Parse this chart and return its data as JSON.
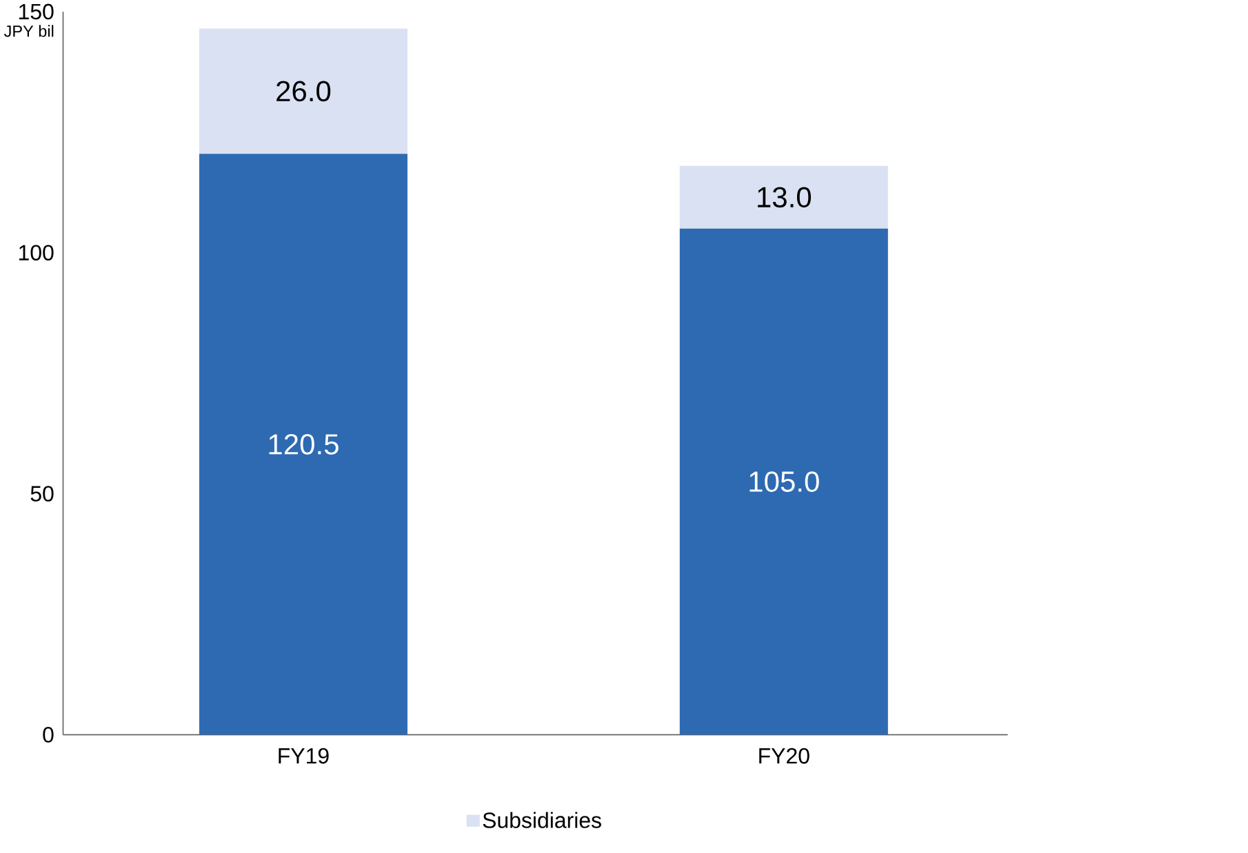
{
  "chart_data": {
    "type": "bar",
    "stacked": true,
    "ylabel": "JPY bil",
    "categories": [
      "FY19",
      "FY20"
    ],
    "series": [
      {
        "color": "#2e6ab1",
        "values": [
          120.5,
          105.0
        ],
        "value_labels": [
          "120.5",
          "105.0"
        ]
      },
      {
        "name": "Subsidiaries",
        "color": "#d9e1f2",
        "values": [
          26.0,
          13.0
        ],
        "value_labels": [
          "26.0",
          "13.0"
        ]
      }
    ],
    "ylim": [
      0,
      150
    ],
    "yticks": [
      0,
      50,
      100,
      150
    ],
    "grid": false,
    "legend": "bottom"
  }
}
